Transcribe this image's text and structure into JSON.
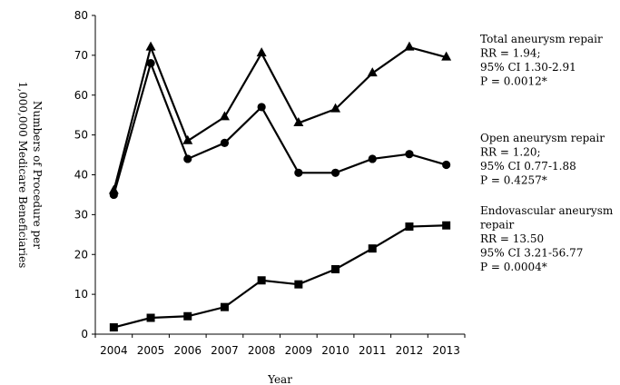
{
  "chart_data": {
    "type": "line",
    "title": "",
    "xlabel": "Year",
    "ylabel": [
      "Numbers of Procedure per",
      "1,000,000 Medicare Beneficiaries"
    ],
    "x": [
      "2004",
      "2005",
      "2006",
      "2007",
      "2008",
      "2009",
      "2010",
      "2011",
      "2012",
      "2013"
    ],
    "ylim": [
      0,
      80
    ],
    "yticks": [
      "0",
      "10",
      "20",
      "30",
      "40",
      "50",
      "60",
      "70",
      "80"
    ],
    "grid": false,
    "series": [
      {
        "name": "Total aneurysm repair",
        "marker": "triangle",
        "values": [
          36,
          72,
          48.5,
          54.5,
          70.5,
          53,
          56.5,
          65.5,
          72,
          69.5
        ]
      },
      {
        "name": "Open aneurysm repair",
        "marker": "circle",
        "values": [
          35,
          68,
          44,
          48,
          57,
          40.5,
          40.5,
          44,
          45.2,
          42.5
        ]
      },
      {
        "name": "Endovascular aneurysm repair",
        "marker": "square",
        "values": [
          1.7,
          4.1,
          4.5,
          6.8,
          13.5,
          12.5,
          16.3,
          21.5,
          27,
          27.3
        ]
      }
    ],
    "annotations": [
      {
        "lines": [
          "Total aneurysm repair",
          "RR = 1.94;",
          "95% CI 1.30-2.91",
          "P = 0.0012*"
        ]
      },
      {
        "lines": [
          "Open aneurysm repair",
          "RR = 1.20;",
          "95% CI 0.77-1.88",
          "P = 0.4257*"
        ]
      },
      {
        "lines": [
          "Endovascular aneurysm",
          "repair",
          "RR = 13.50",
          "95% CI 3.21-56.77",
          "P = 0.0004*"
        ]
      }
    ]
  }
}
